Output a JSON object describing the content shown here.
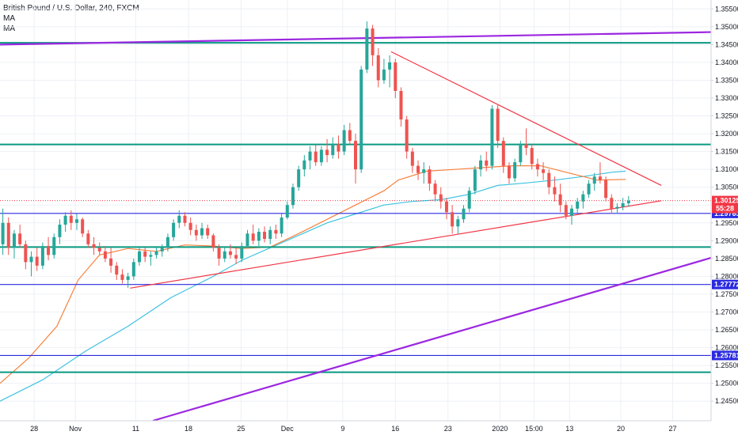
{
  "legend": {
    "title": "British Pound / U.S. Dollar, 240, FXCM",
    "ma1": "MA",
    "ma2": "MA"
  },
  "colors": {
    "up": "#26a69a",
    "down": "#ef5350",
    "horizontal_green": "#089981",
    "horizontal_blue": "#2a2ae0",
    "channel_purple": "#9c27e0",
    "trend_red": "#f23645",
    "ma_fast": "#f7813c",
    "ma_slow": "#3fc3e0",
    "grid": "#eef0f5",
    "price_tag": "#f23645",
    "level_tag": "#2a2ae0"
  },
  "chart_data": {
    "type": "candlestick",
    "symbol": "British Pound / U.S. Dollar, 240, FXCM",
    "ylim": [
      1.2395,
      1.3575
    ],
    "y_ticks": [
      "1.35500",
      "1.35000",
      "1.34500",
      "1.34000",
      "1.33500",
      "1.33000",
      "1.32500",
      "1.32000",
      "1.31500",
      "1.31000",
      "1.30500",
      "1.30000",
      "1.29500",
      "1.29000",
      "1.28500",
      "1.28000",
      "1.27500",
      "1.27000",
      "1.26500",
      "1.26000",
      "1.25500",
      "1.25000",
      "1.24500"
    ],
    "x_ticks": [
      {
        "label": "28",
        "x": 0.048
      },
      {
        "label": "Nov",
        "x": 0.106
      },
      {
        "label": "11",
        "x": 0.191
      },
      {
        "label": "18",
        "x": 0.265
      },
      {
        "label": "25",
        "x": 0.339
      },
      {
        "label": "Dec",
        "x": 0.404
      },
      {
        "label": "9",
        "x": 0.482
      },
      {
        "label": "16",
        "x": 0.556
      },
      {
        "label": "23",
        "x": 0.63
      },
      {
        "label": "2020",
        "x": 0.703
      },
      {
        "label": "15:00",
        "x": 0.751
      },
      {
        "label": "13",
        "x": 0.801
      },
      {
        "label": "20",
        "x": 0.873
      },
      {
        "label": "27",
        "x": 0.946
      }
    ],
    "horizontal_levels": [
      {
        "value": 1.3455,
        "color_key": "horizontal_green"
      },
      {
        "value": 1.317,
        "color_key": "horizontal_green"
      },
      {
        "value": 1.2882,
        "color_key": "horizontal_green"
      },
      {
        "value": 1.2531,
        "color_key": "horizontal_green"
      },
      {
        "value": 1.29765,
        "color_key": "horizontal_blue",
        "label": "1.29765"
      },
      {
        "value": 1.27772,
        "color_key": "horizontal_blue",
        "label": "1.27772"
      },
      {
        "value": 1.25781,
        "color_key": "horizontal_blue",
        "label": "1.25781"
      }
    ],
    "current_price": {
      "value": 1.30125,
      "label": "1.30125",
      "countdown": "55:28"
    },
    "channel_lines": [
      {
        "from": [
          0.0,
          1.345
        ],
        "to": [
          1.0,
          1.3485
        ]
      },
      {
        "from": [
          0.215,
          1.2395
        ],
        "to": [
          1.0,
          1.2852
        ]
      }
    ],
    "trend_lines": [
      {
        "from": [
          0.183,
          1.2767
        ],
        "to": [
          0.93,
          1.3012
        ]
      },
      {
        "from": [
          0.55,
          1.343
        ],
        "to": [
          0.93,
          1.3055
        ]
      }
    ],
    "candles": [
      {
        "x": 0.004,
        "o": 1.289,
        "h": 1.299,
        "l": 1.286,
        "c": 1.295
      },
      {
        "x": 0.012,
        "o": 1.295,
        "h": 1.2965,
        "l": 1.286,
        "c": 1.288
      },
      {
        "x": 0.02,
        "o": 1.288,
        "h": 1.293,
        "l": 1.285,
        "c": 1.292
      },
      {
        "x": 0.028,
        "o": 1.292,
        "h": 1.2945,
        "l": 1.288,
        "c": 1.289
      },
      {
        "x": 0.036,
        "o": 1.289,
        "h": 1.29,
        "l": 1.282,
        "c": 1.284
      },
      {
        "x": 0.044,
        "o": 1.284,
        "h": 1.287,
        "l": 1.28,
        "c": 1.2855
      },
      {
        "x": 0.052,
        "o": 1.2855,
        "h": 1.288,
        "l": 1.2815,
        "c": 1.283
      },
      {
        "x": 0.06,
        "o": 1.283,
        "h": 1.2895,
        "l": 1.282,
        "c": 1.2885
      },
      {
        "x": 0.068,
        "o": 1.2885,
        "h": 1.291,
        "l": 1.2845,
        "c": 1.286
      },
      {
        "x": 0.076,
        "o": 1.286,
        "h": 1.292,
        "l": 1.285,
        "c": 1.291
      },
      {
        "x": 0.084,
        "o": 1.291,
        "h": 1.296,
        "l": 1.289,
        "c": 1.2945
      },
      {
        "x": 0.092,
        "o": 1.2945,
        "h": 1.298,
        "l": 1.2925,
        "c": 1.297
      },
      {
        "x": 0.1,
        "o": 1.297,
        "h": 1.2985,
        "l": 1.293,
        "c": 1.295
      },
      {
        "x": 0.108,
        "o": 1.295,
        "h": 1.2975,
        "l": 1.293,
        "c": 1.296
      },
      {
        "x": 0.116,
        "o": 1.296,
        "h": 1.2965,
        "l": 1.291,
        "c": 1.292
      },
      {
        "x": 0.124,
        "o": 1.292,
        "h": 1.293,
        "l": 1.288,
        "c": 1.289
      },
      {
        "x": 0.132,
        "o": 1.289,
        "h": 1.291,
        "l": 1.286,
        "c": 1.288
      },
      {
        "x": 0.14,
        "o": 1.288,
        "h": 1.2895,
        "l": 1.286,
        "c": 1.287
      },
      {
        "x": 0.148,
        "o": 1.287,
        "h": 1.2885,
        "l": 1.284,
        "c": 1.285
      },
      {
        "x": 0.156,
        "o": 1.285,
        "h": 1.288,
        "l": 1.281,
        "c": 1.283
      },
      {
        "x": 0.164,
        "o": 1.283,
        "h": 1.284,
        "l": 1.279,
        "c": 1.2805
      },
      {
        "x": 0.172,
        "o": 1.2805,
        "h": 1.282,
        "l": 1.278,
        "c": 1.279
      },
      {
        "x": 0.18,
        "o": 1.279,
        "h": 1.281,
        "l": 1.2768,
        "c": 1.28
      },
      {
        "x": 0.188,
        "o": 1.28,
        "h": 1.285,
        "l": 1.279,
        "c": 1.284
      },
      {
        "x": 0.196,
        "o": 1.284,
        "h": 1.288,
        "l": 1.283,
        "c": 1.287
      },
      {
        "x": 0.204,
        "o": 1.287,
        "h": 1.288,
        "l": 1.284,
        "c": 1.2855
      },
      {
        "x": 0.212,
        "o": 1.2855,
        "h": 1.287,
        "l": 1.283,
        "c": 1.286
      },
      {
        "x": 0.22,
        "o": 1.286,
        "h": 1.288,
        "l": 1.285,
        "c": 1.287
      },
      {
        "x": 0.228,
        "o": 1.287,
        "h": 1.289,
        "l": 1.2855,
        "c": 1.288
      },
      {
        "x": 0.236,
        "o": 1.288,
        "h": 1.292,
        "l": 1.287,
        "c": 1.291
      },
      {
        "x": 0.244,
        "o": 1.291,
        "h": 1.296,
        "l": 1.29,
        "c": 1.295
      },
      {
        "x": 0.252,
        "o": 1.295,
        "h": 1.2985,
        "l": 1.2935,
        "c": 1.297
      },
      {
        "x": 0.26,
        "o": 1.297,
        "h": 1.298,
        "l": 1.294,
        "c": 1.295
      },
      {
        "x": 0.268,
        "o": 1.295,
        "h": 1.2965,
        "l": 1.2915,
        "c": 1.293
      },
      {
        "x": 0.276,
        "o": 1.293,
        "h": 1.2945,
        "l": 1.29,
        "c": 1.2915
      },
      {
        "x": 0.284,
        "o": 1.2915,
        "h": 1.295,
        "l": 1.2905,
        "c": 1.2935
      },
      {
        "x": 0.292,
        "o": 1.2935,
        "h": 1.2945,
        "l": 1.2905,
        "c": 1.2915
      },
      {
        "x": 0.3,
        "o": 1.2915,
        "h": 1.292,
        "l": 1.287,
        "c": 1.288
      },
      {
        "x": 0.308,
        "o": 1.288,
        "h": 1.289,
        "l": 1.283,
        "c": 1.285
      },
      {
        "x": 0.316,
        "o": 1.285,
        "h": 1.288,
        "l": 1.284,
        "c": 1.287
      },
      {
        "x": 0.324,
        "o": 1.287,
        "h": 1.289,
        "l": 1.285,
        "c": 1.286
      },
      {
        "x": 0.332,
        "o": 1.286,
        "h": 1.288,
        "l": 1.2835,
        "c": 1.285
      },
      {
        "x": 0.34,
        "o": 1.285,
        "h": 1.2895,
        "l": 1.284,
        "c": 1.2885
      },
      {
        "x": 0.348,
        "o": 1.2885,
        "h": 1.293,
        "l": 1.288,
        "c": 1.292
      },
      {
        "x": 0.356,
        "o": 1.292,
        "h": 1.2945,
        "l": 1.289,
        "c": 1.29
      },
      {
        "x": 0.364,
        "o": 1.29,
        "h": 1.2935,
        "l": 1.2885,
        "c": 1.2925
      },
      {
        "x": 0.372,
        "o": 1.2925,
        "h": 1.294,
        "l": 1.2895,
        "c": 1.2905
      },
      {
        "x": 0.38,
        "o": 1.2905,
        "h": 1.294,
        "l": 1.289,
        "c": 1.293
      },
      {
        "x": 0.388,
        "o": 1.293,
        "h": 1.2945,
        "l": 1.2905,
        "c": 1.292
      },
      {
        "x": 0.396,
        "o": 1.292,
        "h": 1.2975,
        "l": 1.291,
        "c": 1.2965
      },
      {
        "x": 0.404,
        "o": 1.2965,
        "h": 1.301,
        "l": 1.296,
        "c": 1.3
      },
      {
        "x": 0.412,
        "o": 1.3,
        "h": 1.306,
        "l": 1.299,
        "c": 1.305
      },
      {
        "x": 0.42,
        "o": 1.305,
        "h": 1.311,
        "l": 1.304,
        "c": 1.31
      },
      {
        "x": 0.428,
        "o": 1.31,
        "h": 1.314,
        "l": 1.308,
        "c": 1.3125
      },
      {
        "x": 0.436,
        "o": 1.3125,
        "h": 1.3165,
        "l": 1.31,
        "c": 1.315
      },
      {
        "x": 0.444,
        "o": 1.315,
        "h": 1.317,
        "l": 1.311,
        "c": 1.312
      },
      {
        "x": 0.452,
        "o": 1.312,
        "h": 1.3165,
        "l": 1.311,
        "c": 1.3155
      },
      {
        "x": 0.46,
        "o": 1.3155,
        "h": 1.3185,
        "l": 1.312,
        "c": 1.314
      },
      {
        "x": 0.468,
        "o": 1.314,
        "h": 1.319,
        "l": 1.313,
        "c": 1.317
      },
      {
        "x": 0.476,
        "o": 1.317,
        "h": 1.3195,
        "l": 1.313,
        "c": 1.315
      },
      {
        "x": 0.484,
        "o": 1.315,
        "h": 1.3225,
        "l": 1.314,
        "c": 1.321
      },
      {
        "x": 0.492,
        "o": 1.321,
        "h": 1.323,
        "l": 1.317,
        "c": 1.318
      },
      {
        "x": 0.5,
        "o": 1.318,
        "h": 1.32,
        "l": 1.306,
        "c": 1.31
      },
      {
        "x": 0.508,
        "o": 1.31,
        "h": 1.339,
        "l": 1.309,
        "c": 1.338
      },
      {
        "x": 0.516,
        "o": 1.338,
        "h": 1.3515,
        "l": 1.337,
        "c": 1.3495
      },
      {
        "x": 0.524,
        "o": 1.3495,
        "h": 1.3505,
        "l": 1.339,
        "c": 1.342
      },
      {
        "x": 0.532,
        "o": 1.342,
        "h": 1.344,
        "l": 1.333,
        "c": 1.335
      },
      {
        "x": 0.54,
        "o": 1.335,
        "h": 1.341,
        "l": 1.334,
        "c": 1.338
      },
      {
        "x": 0.548,
        "o": 1.338,
        "h": 1.342,
        "l": 1.333,
        "c": 1.34
      },
      {
        "x": 0.556,
        "o": 1.34,
        "h": 1.341,
        "l": 1.33,
        "c": 1.332
      },
      {
        "x": 0.564,
        "o": 1.332,
        "h": 1.333,
        "l": 1.322,
        "c": 1.324
      },
      {
        "x": 0.572,
        "o": 1.324,
        "h": 1.325,
        "l": 1.313,
        "c": 1.315
      },
      {
        "x": 0.58,
        "o": 1.315,
        "h": 1.316,
        "l": 1.309,
        "c": 1.311
      },
      {
        "x": 0.588,
        "o": 1.311,
        "h": 1.3125,
        "l": 1.307,
        "c": 1.309
      },
      {
        "x": 0.596,
        "o": 1.309,
        "h": 1.312,
        "l": 1.306,
        "c": 1.31
      },
      {
        "x": 0.604,
        "o": 1.31,
        "h": 1.311,
        "l": 1.304,
        "c": 1.306
      },
      {
        "x": 0.612,
        "o": 1.306,
        "h": 1.307,
        "l": 1.301,
        "c": 1.303
      },
      {
        "x": 0.62,
        "o": 1.303,
        "h": 1.305,
        "l": 1.299,
        "c": 1.301
      },
      {
        "x": 0.628,
        "o": 1.301,
        "h": 1.302,
        "l": 1.296,
        "c": 1.298
      },
      {
        "x": 0.636,
        "o": 1.298,
        "h": 1.3,
        "l": 1.292,
        "c": 1.294
      },
      {
        "x": 0.644,
        "o": 1.294,
        "h": 1.297,
        "l": 1.292,
        "c": 1.296
      },
      {
        "x": 0.652,
        "o": 1.296,
        "h": 1.3,
        "l": 1.295,
        "c": 1.299
      },
      {
        "x": 0.66,
        "o": 1.299,
        "h": 1.305,
        "l": 1.298,
        "c": 1.304
      },
      {
        "x": 0.668,
        "o": 1.304,
        "h": 1.311,
        "l": 1.303,
        "c": 1.31
      },
      {
        "x": 0.676,
        "o": 1.31,
        "h": 1.314,
        "l": 1.308,
        "c": 1.3125
      },
      {
        "x": 0.684,
        "o": 1.3125,
        "h": 1.315,
        "l": 1.3095,
        "c": 1.311
      },
      {
        "x": 0.692,
        "o": 1.311,
        "h": 1.328,
        "l": 1.31,
        "c": 1.327
      },
      {
        "x": 0.7,
        "o": 1.327,
        "h": 1.328,
        "l": 1.316,
        "c": 1.318
      },
      {
        "x": 0.708,
        "o": 1.318,
        "h": 1.319,
        "l": 1.309,
        "c": 1.311
      },
      {
        "x": 0.716,
        "o": 1.311,
        "h": 1.312,
        "l": 1.306,
        "c": 1.3075
      },
      {
        "x": 0.724,
        "o": 1.3075,
        "h": 1.313,
        "l": 1.3065,
        "c": 1.312
      },
      {
        "x": 0.732,
        "o": 1.312,
        "h": 1.318,
        "l": 1.311,
        "c": 1.317
      },
      {
        "x": 0.74,
        "o": 1.317,
        "h": 1.3215,
        "l": 1.314,
        "c": 1.316
      },
      {
        "x": 0.748,
        "o": 1.316,
        "h": 1.317,
        "l": 1.31,
        "c": 1.3115
      },
      {
        "x": 0.756,
        "o": 1.3115,
        "h": 1.313,
        "l": 1.308,
        "c": 1.31
      },
      {
        "x": 0.764,
        "o": 1.31,
        "h": 1.312,
        "l": 1.307,
        "c": 1.309
      },
      {
        "x": 0.772,
        "o": 1.309,
        "h": 1.31,
        "l": 1.303,
        "c": 1.305
      },
      {
        "x": 0.78,
        "o": 1.305,
        "h": 1.308,
        "l": 1.301,
        "c": 1.303
      },
      {
        "x": 0.788,
        "o": 1.303,
        "h": 1.306,
        "l": 1.298,
        "c": 1.3
      },
      {
        "x": 0.796,
        "o": 1.3,
        "h": 1.301,
        "l": 1.296,
        "c": 1.297
      },
      {
        "x": 0.804,
        "o": 1.297,
        "h": 1.3,
        "l": 1.2945,
        "c": 1.299
      },
      {
        "x": 0.812,
        "o": 1.299,
        "h": 1.302,
        "l": 1.2975,
        "c": 1.301
      },
      {
        "x": 0.82,
        "o": 1.301,
        "h": 1.304,
        "l": 1.299,
        "c": 1.303
      },
      {
        "x": 0.828,
        "o": 1.303,
        "h": 1.307,
        "l": 1.302,
        "c": 1.306
      },
      {
        "x": 0.836,
        "o": 1.306,
        "h": 1.309,
        "l": 1.304,
        "c": 1.308
      },
      {
        "x": 0.844,
        "o": 1.308,
        "h": 1.312,
        "l": 1.306,
        "c": 1.307
      },
      {
        "x": 0.852,
        "o": 1.307,
        "h": 1.308,
        "l": 1.301,
        "c": 1.302
      },
      {
        "x": 0.86,
        "o": 1.302,
        "h": 1.303,
        "l": 1.2975,
        "c": 1.299
      },
      {
        "x": 0.868,
        "o": 1.299,
        "h": 1.3005,
        "l": 1.2975,
        "c": 1.2995
      },
      {
        "x": 0.876,
        "o": 1.2995,
        "h": 1.302,
        "l": 1.2985,
        "c": 1.3005
      },
      {
        "x": 0.884,
        "o": 1.3005,
        "h": 1.3025,
        "l": 1.2995,
        "c": 1.3012
      }
    ],
    "ma_fast": [
      [
        0.0,
        1.25
      ],
      [
        0.04,
        1.257
      ],
      [
        0.08,
        1.266
      ],
      [
        0.11,
        1.279
      ],
      [
        0.14,
        1.286
      ],
      [
        0.18,
        1.2878
      ],
      [
        0.22,
        1.287
      ],
      [
        0.26,
        1.2888
      ],
      [
        0.3,
        1.2885
      ],
      [
        0.34,
        1.2878
      ],
      [
        0.38,
        1.2882
      ],
      [
        0.42,
        1.292
      ],
      [
        0.46,
        1.296
      ],
      [
        0.5,
        1.3
      ],
      [
        0.54,
        1.304
      ],
      [
        0.56,
        1.307
      ],
      [
        0.6,
        1.3095
      ],
      [
        0.64,
        1.31
      ],
      [
        0.68,
        1.3105
      ],
      [
        0.72,
        1.311
      ],
      [
        0.76,
        1.311
      ],
      [
        0.8,
        1.309
      ],
      [
        0.84,
        1.307
      ],
      [
        0.88,
        1.3072
      ]
    ],
    "ma_slow": [
      [
        0.0,
        1.245
      ],
      [
        0.06,
        1.251
      ],
      [
        0.12,
        1.259
      ],
      [
        0.18,
        1.266
      ],
      [
        0.24,
        1.274
      ],
      [
        0.3,
        1.28
      ],
      [
        0.34,
        1.2845
      ],
      [
        0.38,
        1.288
      ],
      [
        0.42,
        1.2915
      ],
      [
        0.46,
        1.295
      ],
      [
        0.5,
        1.2975
      ],
      [
        0.54,
        1.3
      ],
      [
        0.58,
        1.301
      ],
      [
        0.62,
        1.3015
      ],
      [
        0.66,
        1.303
      ],
      [
        0.7,
        1.3055
      ],
      [
        0.74,
        1.3062
      ],
      [
        0.78,
        1.307
      ],
      [
        0.82,
        1.308
      ],
      [
        0.86,
        1.3092
      ],
      [
        0.88,
        1.3095
      ]
    ]
  }
}
